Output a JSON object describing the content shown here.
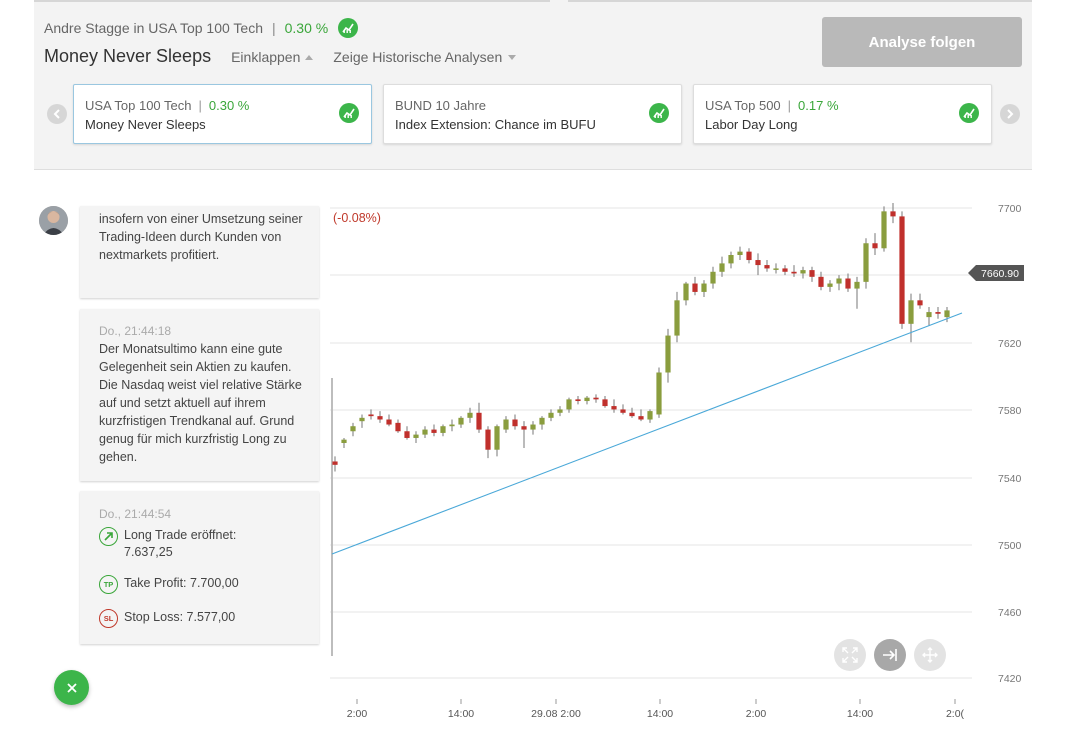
{
  "header": {
    "author": "Andre Stagge in USA Top 100 Tech",
    "performance": "0.30 %",
    "title": "Money Never Sleeps",
    "collapse_label": "Einklappen",
    "history_label": "Zeige Historische Analysen",
    "follow_button": "Analyse folgen"
  },
  "cards": [
    {
      "category": "USA Top 100 Tech",
      "performance": "0.30 %",
      "name": "Money Never Sleeps",
      "active": true
    },
    {
      "category": "BUND 10 Jahre",
      "performance": "",
      "name": "Index Extension: Chance im BUFU",
      "active": false
    },
    {
      "category": "USA Top 500",
      "performance": "0.17 %",
      "name": "Labor Day Long",
      "active": false
    }
  ],
  "feed": {
    "msg1_body": "insofern von einer Umsetzung seiner Trading-Ideen durch Kunden von nextmarkets profitiert.",
    "msg2_time": "Do., 21:44:18",
    "msg2_body": "Der Monatsultimo kann eine gute Gelegenheit sein Aktien zu kaufen. Die Nasdaq weist viel relative Stärke auf und setzt aktuell auf ihrem kurzfristigen Trendkanal auf. Grund genug für mich kurzfristig Long zu gehen.",
    "msg3_time": "Do., 21:44:54",
    "long_trade": "Long Trade eröffnet: 7.637,25",
    "take_profit": "Take Profit: 7.700,00",
    "stop_loss": "Stop Loss: 7.577,00",
    "tp_label": "TP",
    "sl_label": "SL"
  },
  "chart_data": {
    "type": "candlestick",
    "change_label": "(-0.08%)",
    "current_price": "7660.90",
    "y_ticks": [
      "7700",
      "7620",
      "7580",
      "7540",
      "7500",
      "7460",
      "7420"
    ],
    "x_ticks": [
      "2:00",
      "14:00",
      "29.08 2:00",
      "14:00",
      "2:00",
      "14:00",
      "2:0("
    ],
    "colors": {
      "up": "#8a9d3e",
      "down": "#c0302c",
      "trendline": "#4aa8d8"
    },
    "candles": [
      [
        7549,
        7552,
        7543,
        7547
      ],
      [
        7560,
        7563,
        7557,
        7562
      ],
      [
        7567,
        7572,
        7564,
        7570
      ],
      [
        7573,
        7577,
        7569,
        7575
      ],
      [
        7577,
        7580,
        7574,
        7576
      ],
      [
        7576,
        7579,
        7572,
        7574
      ],
      [
        7574,
        7577,
        7570,
        7571
      ],
      [
        7572,
        7574,
        7566,
        7567
      ],
      [
        7567,
        7570,
        7562,
        7563
      ],
      [
        7563,
        7567,
        7560,
        7565
      ],
      [
        7565,
        7570,
        7563,
        7568
      ],
      [
        7568,
        7571,
        7564,
        7566
      ],
      [
        7566,
        7571,
        7564,
        7570
      ],
      [
        7570,
        7574,
        7567,
        7571
      ],
      [
        7571,
        7576,
        7569,
        7575
      ],
      [
        7575,
        7581,
        7572,
        7578
      ],
      [
        7578,
        7584,
        7566,
        7568
      ],
      [
        7568,
        7570,
        7551,
        7556
      ],
      [
        7556,
        7571,
        7552,
        7570
      ],
      [
        7568,
        7576,
        7566,
        7574
      ],
      [
        7574,
        7577,
        7568,
        7570
      ],
      [
        7570,
        7573,
        7557,
        7568
      ],
      [
        7568,
        7573,
        7565,
        7571
      ],
      [
        7571,
        7576,
        7568,
        7575
      ],
      [
        7575,
        7580,
        7573,
        7578
      ],
      [
        7578,
        7582,
        7576,
        7580
      ],
      [
        7580,
        7587,
        7578,
        7586
      ],
      [
        7586,
        7588,
        7583,
        7585
      ],
      [
        7585,
        7588,
        7583,
        7587
      ],
      [
        7587,
        7589,
        7584,
        7586
      ],
      [
        7586,
        7588,
        7581,
        7582
      ],
      [
        7582,
        7586,
        7578,
        7580
      ],
      [
        7580,
        7583,
        7577,
        7578
      ],
      [
        7578,
        7581,
        7575,
        7576
      ],
      [
        7576,
        7580,
        7573,
        7574
      ],
      [
        7574,
        7580,
        7572,
        7579
      ],
      [
        7577,
        7605,
        7575,
        7602
      ],
      [
        7602,
        7628,
        7596,
        7624
      ],
      [
        7624,
        7650,
        7620,
        7645
      ],
      [
        7645,
        7656,
        7642,
        7655
      ],
      [
        7655,
        7659,
        7648,
        7650
      ],
      [
        7650,
        7657,
        7647,
        7655
      ],
      [
        7655,
        7665,
        7652,
        7662
      ],
      [
        7662,
        7671,
        7659,
        7667
      ],
      [
        7667,
        7674,
        7664,
        7672
      ],
      [
        7672,
        7677,
        7669,
        7674
      ],
      [
        7674,
        7676,
        7667,
        7669
      ],
      [
        7669,
        7673,
        7660,
        7666
      ],
      [
        7666,
        7669,
        7662,
        7664
      ],
      [
        7664,
        7667,
        7661,
        7664
      ],
      [
        7664,
        7666,
        7660,
        7662
      ],
      [
        7662,
        7666,
        7659,
        7661
      ],
      [
        7661,
        7665,
        7658,
        7663
      ],
      [
        7663,
        7665,
        7656,
        7659
      ],
      [
        7659,
        7662,
        7651,
        7653
      ],
      [
        7653,
        7657,
        7650,
        7655
      ],
      [
        7655,
        7660,
        7651,
        7658
      ],
      [
        7658,
        7661,
        7650,
        7652
      ],
      [
        7652,
        7659,
        7640,
        7656
      ],
      [
        7656,
        7682,
        7652,
        7679
      ],
      [
        7679,
        7685,
        7672,
        7676
      ],
      [
        7676,
        7701,
        7674,
        7698
      ],
      [
        7698,
        7703,
        7691,
        7695
      ],
      [
        7695,
        7698,
        7628,
        7631
      ],
      [
        7631,
        7649,
        7620,
        7645
      ],
      [
        7645,
        7649,
        7640,
        7642
      ],
      [
        7635,
        7641,
        7630,
        7638
      ],
      [
        7638,
        7641,
        7634,
        7637
      ],
      [
        7635,
        7641,
        7632,
        7639
      ]
    ],
    "trendline": [
      [
        0,
        7495
      ],
      [
        69,
        7640
      ]
    ]
  }
}
